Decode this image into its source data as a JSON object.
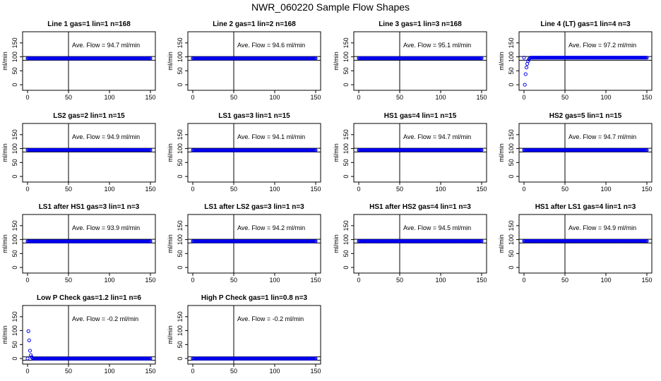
{
  "page": {
    "title": "NWR_060220  Sample Flow Shapes"
  },
  "style": {
    "point_color": "#0000ee",
    "axis_color": "#000000"
  },
  "chart_data": [
    {
      "type": "scatter",
      "title": "Line 1 gas=1 lin=1 n=168",
      "annotation": "Ave. Flow =  94.7  ml/min",
      "ylabel": "ml/min",
      "xlim": [
        0,
        150
      ],
      "ylim": [
        -20,
        190
      ],
      "xticks": [
        0,
        50,
        100,
        150
      ],
      "yticks": [
        0,
        50,
        100,
        150
      ],
      "hlines": [
        88,
        101
      ],
      "vline": 50,
      "x_end": 150,
      "level": 94.7,
      "ramp": []
    },
    {
      "type": "scatter",
      "title": "Line 2 gas=1 lin=2 n=168",
      "annotation": "Ave. Flow =  94.6  ml/min",
      "ylabel": "ml/min",
      "xlim": [
        0,
        150
      ],
      "ylim": [
        -20,
        190
      ],
      "xticks": [
        0,
        50,
        100,
        150
      ],
      "yticks": [
        0,
        50,
        100,
        150
      ],
      "hlines": [
        88,
        101
      ],
      "vline": 50,
      "x_end": 150,
      "level": 94.6,
      "ramp": []
    },
    {
      "type": "scatter",
      "title": "Line 3 gas=1 lin=3 n=168",
      "annotation": "Ave. Flow =  95.1  ml/min",
      "ylabel": "ml/min",
      "xlim": [
        0,
        150
      ],
      "ylim": [
        -20,
        190
      ],
      "xticks": [
        0,
        50,
        100,
        150
      ],
      "yticks": [
        0,
        50,
        100,
        150
      ],
      "hlines": [
        88,
        101
      ],
      "vline": 50,
      "x_end": 150,
      "level": 95.1,
      "ramp": []
    },
    {
      "type": "scatter",
      "title": "Line 4 (LT) gas=1 lin=4 n=3",
      "annotation": "Ave. Flow =  97.2  ml/min",
      "ylabel": "ml/min",
      "xlim": [
        0,
        150
      ],
      "ylim": [
        -20,
        190
      ],
      "xticks": [
        0,
        50,
        100,
        150
      ],
      "yticks": [
        0,
        50,
        100,
        150
      ],
      "hlines": [
        88,
        101
      ],
      "vline": 50,
      "x_end": 150,
      "level": 97.2,
      "ramp": [
        [
          1,
          0
        ],
        [
          2,
          38
        ],
        [
          3,
          62
        ],
        [
          4,
          75
        ],
        [
          5,
          85
        ],
        [
          6,
          91
        ],
        [
          7,
          95
        ]
      ]
    },
    {
      "type": "scatter",
      "title": "LS2 gas=2 lin=1 n=15",
      "annotation": "Ave. Flow =  94.9  ml/min",
      "ylabel": "ml/min",
      "xlim": [
        0,
        150
      ],
      "ylim": [
        -20,
        190
      ],
      "xticks": [
        0,
        50,
        100,
        150
      ],
      "yticks": [
        0,
        50,
        100,
        150
      ],
      "hlines": [
        88,
        101
      ],
      "vline": 50,
      "x_end": 150,
      "level": 94.9,
      "ramp": []
    },
    {
      "type": "scatter",
      "title": "LS1 gas=3 lin=1 n=15",
      "annotation": "Ave. Flow =  94.1  ml/min",
      "ylabel": "ml/min",
      "xlim": [
        0,
        150
      ],
      "ylim": [
        -20,
        190
      ],
      "xticks": [
        0,
        50,
        100,
        150
      ],
      "yticks": [
        0,
        50,
        100,
        150
      ],
      "hlines": [
        88,
        101
      ],
      "vline": 50,
      "x_end": 150,
      "level": 94.1,
      "ramp": []
    },
    {
      "type": "scatter",
      "title": "HS1 gas=4 lin=1 n=15",
      "annotation": "Ave. Flow =  94.7  ml/min",
      "ylabel": "ml/min",
      "xlim": [
        0,
        150
      ],
      "ylim": [
        -20,
        190
      ],
      "xticks": [
        0,
        50,
        100,
        150
      ],
      "yticks": [
        0,
        50,
        100,
        150
      ],
      "hlines": [
        88,
        101
      ],
      "vline": 50,
      "x_end": 150,
      "level": 94.7,
      "ramp": []
    },
    {
      "type": "scatter",
      "title": "HS2 gas=5 lin=1 n=15",
      "annotation": "Ave. Flow =  94.7  ml/min",
      "ylabel": "ml/min",
      "xlim": [
        0,
        150
      ],
      "ylim": [
        -20,
        190
      ],
      "xticks": [
        0,
        50,
        100,
        150
      ],
      "yticks": [
        0,
        50,
        100,
        150
      ],
      "hlines": [
        88,
        101
      ],
      "vline": 50,
      "x_end": 150,
      "level": 94.7,
      "ramp": []
    },
    {
      "type": "scatter",
      "title": "LS1 after HS1 gas=3 lin=1 n=3",
      "annotation": "Ave. Flow =  93.9  ml/min",
      "ylabel": "ml/min",
      "xlim": [
        0,
        150
      ],
      "ylim": [
        -20,
        190
      ],
      "xticks": [
        0,
        50,
        100,
        150
      ],
      "yticks": [
        0,
        50,
        100,
        150
      ],
      "hlines": [
        88,
        101
      ],
      "vline": 50,
      "x_end": 150,
      "level": 93.9,
      "ramp": []
    },
    {
      "type": "scatter",
      "title": "LS1 after LS2 gas=3 lin=1 n=3",
      "annotation": "Ave. Flow =  94.2  ml/min",
      "ylabel": "ml/min",
      "xlim": [
        0,
        150
      ],
      "ylim": [
        -20,
        190
      ],
      "xticks": [
        0,
        50,
        100,
        150
      ],
      "yticks": [
        0,
        50,
        100,
        150
      ],
      "hlines": [
        88,
        101
      ],
      "vline": 50,
      "x_end": 150,
      "level": 94.2,
      "ramp": []
    },
    {
      "type": "scatter",
      "title": "HS1 after HS2 gas=4 lin=1 n=3",
      "annotation": "Ave. Flow =  94.5  ml/min",
      "ylabel": "ml/min",
      "xlim": [
        0,
        150
      ],
      "ylim": [
        -20,
        190
      ],
      "xticks": [
        0,
        50,
        100,
        150
      ],
      "yticks": [
        0,
        50,
        100,
        150
      ],
      "hlines": [
        88,
        101
      ],
      "vline": 50,
      "x_end": 150,
      "level": 94.5,
      "ramp": []
    },
    {
      "type": "scatter",
      "title": "HS1 after LS1 gas=4 lin=1 n=3",
      "annotation": "Ave. Flow =  94.9  ml/min",
      "ylabel": "ml/min",
      "xlim": [
        0,
        150
      ],
      "ylim": [
        -20,
        190
      ],
      "xticks": [
        0,
        50,
        100,
        150
      ],
      "yticks": [
        0,
        50,
        100,
        150
      ],
      "hlines": [
        88,
        101
      ],
      "vline": 50,
      "x_end": 150,
      "level": 94.9,
      "ramp": []
    },
    {
      "type": "scatter",
      "title": "Low P Check gas=1.2 lin=1 n=6",
      "annotation": "Ave. Flow =  -0.2  ml/min",
      "ylabel": "ml/min",
      "xlim": [
        0,
        150
      ],
      "ylim": [
        -20,
        190
      ],
      "xticks": [
        0,
        50,
        100,
        150
      ],
      "yticks": [
        0,
        50,
        100,
        150
      ],
      "hlines": [
        -6,
        6
      ],
      "vline": 50,
      "x_end": 150,
      "level": -0.2,
      "ramp": [
        [
          1,
          98
        ],
        [
          2,
          65
        ],
        [
          3,
          28
        ],
        [
          4,
          12
        ],
        [
          5,
          5
        ],
        [
          6,
          2
        ]
      ]
    },
    {
      "type": "scatter",
      "title": "High P Check gas=1 lin=0.8 n=3",
      "annotation": "Ave. Flow =  -0.2  ml/min",
      "ylabel": "ml/min",
      "xlim": [
        0,
        150
      ],
      "ylim": [
        -20,
        190
      ],
      "xticks": [
        0,
        50,
        100,
        150
      ],
      "yticks": [
        0,
        50,
        100,
        150
      ],
      "hlines": [
        -6,
        6
      ],
      "vline": 50,
      "x_end": 150,
      "level": -0.2,
      "ramp": []
    }
  ]
}
